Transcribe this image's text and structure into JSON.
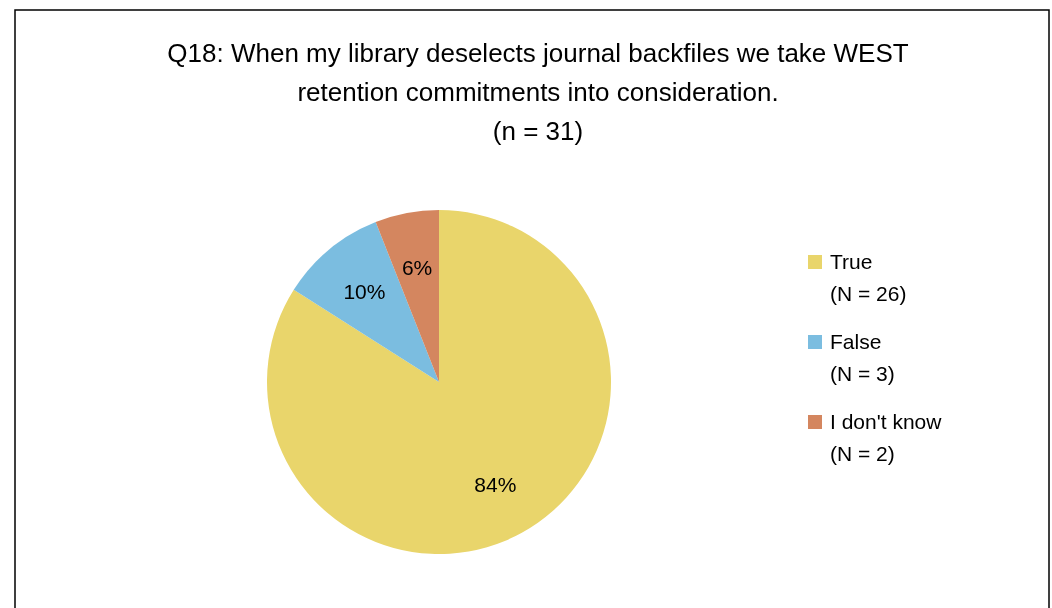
{
  "chart_data": {
    "type": "pie",
    "title": "Q18: When my library deselects journal backfiles we take WEST\nretention commitments into consideration.\n(n = 31)",
    "categories": [
      "True\n(N = 26)",
      "False\n(N = 3)",
      "I don't know\n(N = 2)"
    ],
    "values": [
      84,
      10,
      6
    ],
    "colors": [
      "#e9d56b",
      "#7bbde0",
      "#d4865f"
    ],
    "value_labels": [
      "84%",
      "10%",
      "6%"
    ],
    "legend": "right"
  }
}
